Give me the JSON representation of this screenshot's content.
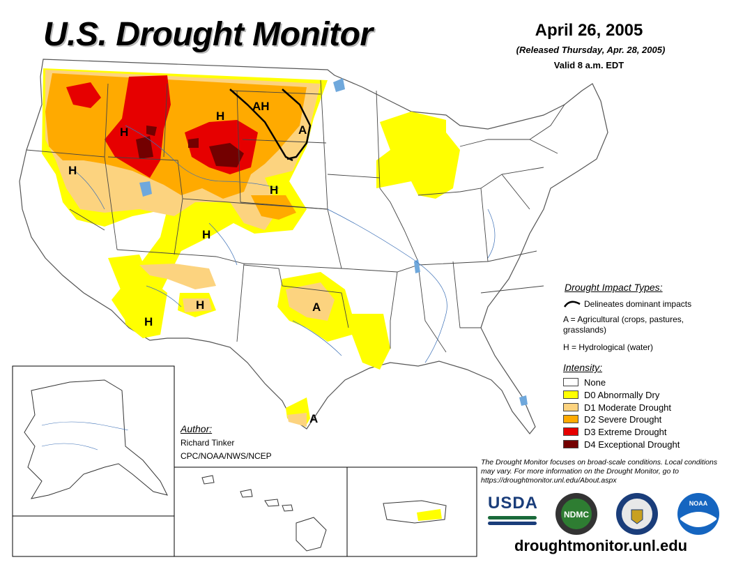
{
  "title": "U.S. Drought Monitor",
  "date": "April 26, 2005",
  "released": "(Released Thursday, Apr. 28, 2005)",
  "valid": "Valid 8 a.m. EDT",
  "map_labels": {
    "h": "H",
    "a": "A",
    "ah": "AH"
  },
  "impact_types": {
    "title": "Drought Impact Types:",
    "line": "Delineates dominant impacts",
    "agricultural": "A = Agricultural (crops, pastures, grasslands)",
    "hydrological": "H = Hydrological (water)"
  },
  "intensity": {
    "title": "Intensity:",
    "items": [
      {
        "label": "None",
        "color": "#ffffff"
      },
      {
        "label": "D0 Abnormally Dry",
        "color": "#ffff00"
      },
      {
        "label": "D1 Moderate Drought",
        "color": "#fcd37f"
      },
      {
        "label": "D2 Severe Drought",
        "color": "#ffaa00"
      },
      {
        "label": "D3 Extreme Drought",
        "color": "#e60000"
      },
      {
        "label": "D4 Exceptional Drought",
        "color": "#730000"
      }
    ]
  },
  "author": {
    "title": "Author:",
    "name": "Richard Tinker",
    "org": "CPC/NOAA/NWS/NCEP"
  },
  "note": "The Drought Monitor focuses on broad-scale conditions. Local conditions may vary. For more information on the Drought Monitor, go to https://droughtmonitor.unl.edu/About.aspx",
  "logos": {
    "usda": "USDA",
    "ndmc": "NDMC",
    "noaa": "NOAA"
  },
  "website": "droughtmonitor.unl.edu"
}
